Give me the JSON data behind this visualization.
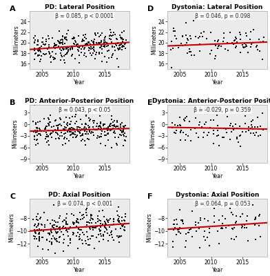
{
  "panels": [
    {
      "label": "A",
      "title": "PD: Lateral Position",
      "annotation": "β = 0.085, p < 0.0001",
      "ylabel": "Millimeters",
      "xlabel": "Year",
      "xlim": [
        2003,
        2019
      ],
      "ylim": [
        15,
        26
      ],
      "yticks": [
        16,
        18,
        20,
        22,
        24
      ],
      "xticks": [
        2005,
        2010,
        2015
      ],
      "intercept": 19.3,
      "slope": 0.085,
      "x_center": 2010,
      "noise": 1.3,
      "n": 300,
      "seed": 11
    },
    {
      "label": "D",
      "title": "Dystonia: Lateral Position",
      "annotation": "β = 0.046, p = 0.098",
      "ylabel": "Millimeters",
      "xlabel": "Year",
      "xlim": [
        2003,
        2019
      ],
      "ylim": [
        15,
        26
      ],
      "yticks": [
        16,
        18,
        20,
        22,
        24
      ],
      "xticks": [
        2005,
        2010,
        2015
      ],
      "intercept": 19.7,
      "slope": 0.046,
      "x_center": 2010,
      "noise": 1.5,
      "n": 100,
      "seed": 22
    },
    {
      "label": "B",
      "title": "PD: Anterior-Posterior Position",
      "annotation": "β = 0.043, p < 0.05",
      "ylabel": "Millimeters",
      "xlabel": "Year",
      "xlim": [
        2003,
        2019
      ],
      "ylim": [
        -10,
        5
      ],
      "yticks": [
        -9,
        -6,
        -3,
        0,
        3
      ],
      "xticks": [
        2005,
        2010,
        2015
      ],
      "intercept": -1.5,
      "slope": 0.043,
      "x_center": 2010,
      "noise": 1.8,
      "n": 300,
      "seed": 33
    },
    {
      "label": "E",
      "title": "Dystonia: Anterior-Posterior Position",
      "annotation": "β = -0.029, p = 0.359",
      "ylabel": "Millimeters",
      "xlabel": "Year",
      "xlim": [
        2003,
        2019
      ],
      "ylim": [
        -10,
        5
      ],
      "yticks": [
        -9,
        -6,
        -3,
        0,
        3
      ],
      "xticks": [
        2005,
        2010,
        2015
      ],
      "intercept": -1.0,
      "slope": -0.029,
      "x_center": 2010,
      "noise": 1.8,
      "n": 100,
      "seed": 44
    },
    {
      "label": "C",
      "title": "PD: Axial Position",
      "annotation": "β = 0.074, p < 0.001",
      "ylabel": "Millimeters",
      "xlabel": "Year",
      "xlim": [
        2003,
        2019
      ],
      "ylim": [
        -14,
        -5
      ],
      "yticks": [
        -12,
        -10,
        -8
      ],
      "xticks": [
        2005,
        2010,
        2015
      ],
      "intercept": -9.5,
      "slope": 0.074,
      "x_center": 2010,
      "noise": 1.5,
      "n": 300,
      "seed": 55
    },
    {
      "label": "F",
      "title": "Dystonia: Axial Position",
      "annotation": "β = 0.064, p = 0.053",
      "ylabel": "Millimeters",
      "xlabel": "Year",
      "xlim": [
        2003,
        2019
      ],
      "ylim": [
        -14,
        -5
      ],
      "yticks": [
        -12,
        -10,
        -8
      ],
      "xticks": [
        2005,
        2010,
        2015
      ],
      "intercept": -9.3,
      "slope": 0.064,
      "x_center": 2010,
      "noise": 1.6,
      "n": 100,
      "seed": 66
    }
  ],
  "scatter_color": "#111111",
  "line_color": "#cc0000",
  "bg_color": "#ebebeb",
  "marker_size": 4,
  "line_width": 1.5,
  "title_fontsize": 6.5,
  "label_fontsize": 5.5,
  "tick_fontsize": 5.5,
  "annot_fontsize": 5.5
}
